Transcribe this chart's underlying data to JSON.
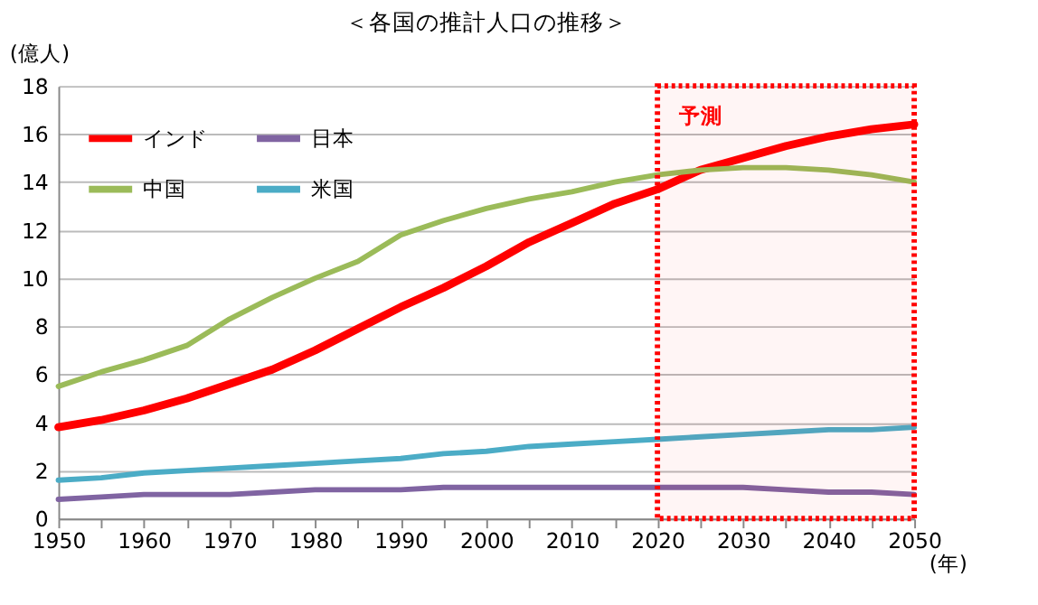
{
  "chart_data": {
    "type": "line",
    "title": "＜各国の推計人口の推移＞",
    "xlabel": "(年)",
    "ylabel": "(億人)",
    "x": [
      1950,
      1955,
      1960,
      1965,
      1970,
      1975,
      1980,
      1985,
      1990,
      1995,
      2000,
      2005,
      2010,
      2015,
      2020,
      2025,
      2030,
      2035,
      2040,
      2045,
      2050
    ],
    "series": [
      {
        "name": "インド",
        "color": "#ff0000",
        "values": [
          3.8,
          4.1,
          4.5,
          5.0,
          5.6,
          6.2,
          7.0,
          7.9,
          8.8,
          9.6,
          10.5,
          11.5,
          12.3,
          13.1,
          13.7,
          14.5,
          15.0,
          15.5,
          15.9,
          16.2,
          16.4
        ]
      },
      {
        "name": "中国",
        "color": "#9bbb59",
        "values": [
          5.5,
          6.1,
          6.6,
          7.2,
          8.3,
          9.2,
          10.0,
          10.7,
          11.8,
          12.4,
          12.9,
          13.3,
          13.6,
          14.0,
          14.3,
          14.5,
          14.6,
          14.6,
          14.5,
          14.3,
          14.0
        ]
      },
      {
        "name": "日本",
        "color": "#8064a2",
        "values": [
          0.8,
          0.9,
          1.0,
          1.0,
          1.0,
          1.1,
          1.2,
          1.2,
          1.2,
          1.3,
          1.3,
          1.3,
          1.3,
          1.3,
          1.3,
          1.3,
          1.3,
          1.2,
          1.1,
          1.1,
          1.0
        ]
      },
      {
        "name": "米国",
        "color": "#4bacc6",
        "values": [
          1.6,
          1.7,
          1.9,
          2.0,
          2.1,
          2.2,
          2.3,
          2.4,
          2.5,
          2.7,
          2.8,
          3.0,
          3.1,
          3.2,
          3.3,
          3.4,
          3.5,
          3.6,
          3.7,
          3.7,
          3.8
        ]
      }
    ],
    "xlim": [
      1950,
      2050
    ],
    "xticks": [
      1950,
      {
        "value": 1955,
        "label": null
      },
      1960,
      {
        "value": 1965,
        "label": null
      },
      1970,
      {
        "value": 1975,
        "label": null
      },
      1980,
      {
        "value": 1985,
        "label": null
      },
      1990,
      {
        "value": 1995,
        "label": null
      },
      2000,
      {
        "value": 2005,
        "label": null
      },
      2010,
      {
        "value": 2015,
        "label": null
      },
      2020,
      {
        "value": 2025,
        "label": null
      },
      2030,
      {
        "value": 2035,
        "label": null
      },
      2040,
      {
        "value": 2045,
        "label": null
      },
      2050
    ],
    "ylim": [
      0,
      18
    ],
    "yticks": [
      0,
      2,
      4,
      6,
      8,
      10,
      12,
      14,
      16,
      18
    ],
    "bands": [
      {
        "axis": "x",
        "from": 2020,
        "to": 2050,
        "label": "予測",
        "color": "#ff0000"
      }
    ],
    "grid": "y",
    "legend": "top left",
    "marker": "none",
    "line_style": "solid"
  }
}
